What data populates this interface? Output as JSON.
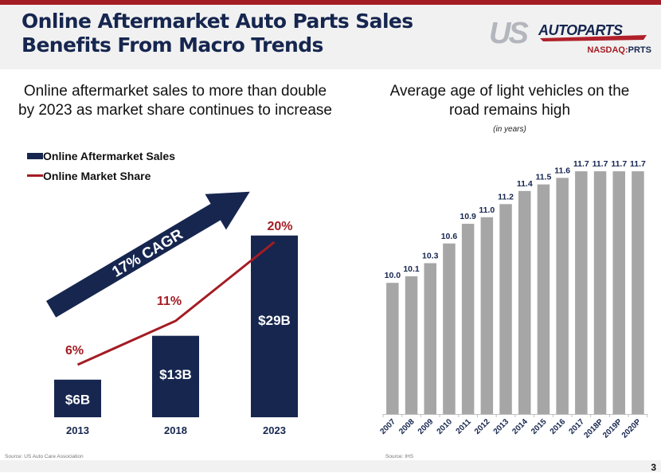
{
  "header": {
    "title_line1": "Online Aftermarket Auto Parts Sales",
    "title_line2": "Benefits From Macro Trends",
    "logo_text_us": "US",
    "logo_text_autoparts": "AUTOPARTS",
    "ticker_exchange": "NASDAQ:",
    "ticker_symbol": "PRTS"
  },
  "left_panel": {
    "subtitle_line1": "Online aftermarket sales to more than double",
    "subtitle_line2": "by 2023 as market share continues to increase",
    "source": "Source: US Auto Care Association"
  },
  "right_panel": {
    "subtitle_line1": "Average age of light vehicles on the",
    "subtitle_line2": "road remains high",
    "units_note": "(in years)",
    "source": "Source: IHS"
  },
  "footer": {
    "page_number": "3"
  },
  "colors": {
    "navy": "#16264f",
    "red": "#a41c24",
    "bar_grey": "#a6a6a6",
    "header_grey": "#f1f1f1"
  },
  "chart_data": [
    {
      "type": "bar",
      "title": "Online aftermarket sales to more than double by 2023 as market share continues to increase",
      "categories": [
        "2013",
        "2018",
        "2023"
      ],
      "series": [
        {
          "name": "Online Aftermarket Sales",
          "kind": "bar",
          "values": [
            6,
            13,
            29
          ],
          "unit": "$B",
          "labels": [
            "$6B",
            "$13B",
            "$29B"
          ]
        },
        {
          "name": "Online Market Share",
          "kind": "line",
          "values": [
            6,
            11,
            20
          ],
          "unit": "%",
          "labels": [
            "6%",
            "11%",
            "20%"
          ]
        }
      ],
      "annotation": "17% CAGR",
      "legend": "top-left",
      "grid": false,
      "ylim_sales": [
        0,
        29
      ],
      "ylim_share": [
        0,
        20
      ]
    },
    {
      "type": "bar",
      "title": "Average age of light vehicles on the road remains high",
      "subtitle": "(in years)",
      "categories": [
        "2007",
        "2008",
        "2009",
        "2010",
        "2011",
        "2012",
        "2013",
        "2014",
        "2015",
        "2016",
        "2017",
        "2018P",
        "2019P",
        "2020P"
      ],
      "values": [
        10.0,
        10.1,
        10.3,
        10.6,
        10.9,
        11.0,
        11.2,
        11.4,
        11.5,
        11.6,
        11.7,
        11.7,
        11.7,
        11.7
      ],
      "value_labels": [
        "10.0",
        "10.1",
        "10.3",
        "10.6",
        "10.9",
        "11.0",
        "11.2",
        "11.4",
        "11.5",
        "11.6",
        "11.7",
        "11.7",
        "11.7",
        "11.7"
      ],
      "ylim": [
        8.0,
        11.7
      ],
      "grid": false,
      "legend": "none"
    }
  ]
}
